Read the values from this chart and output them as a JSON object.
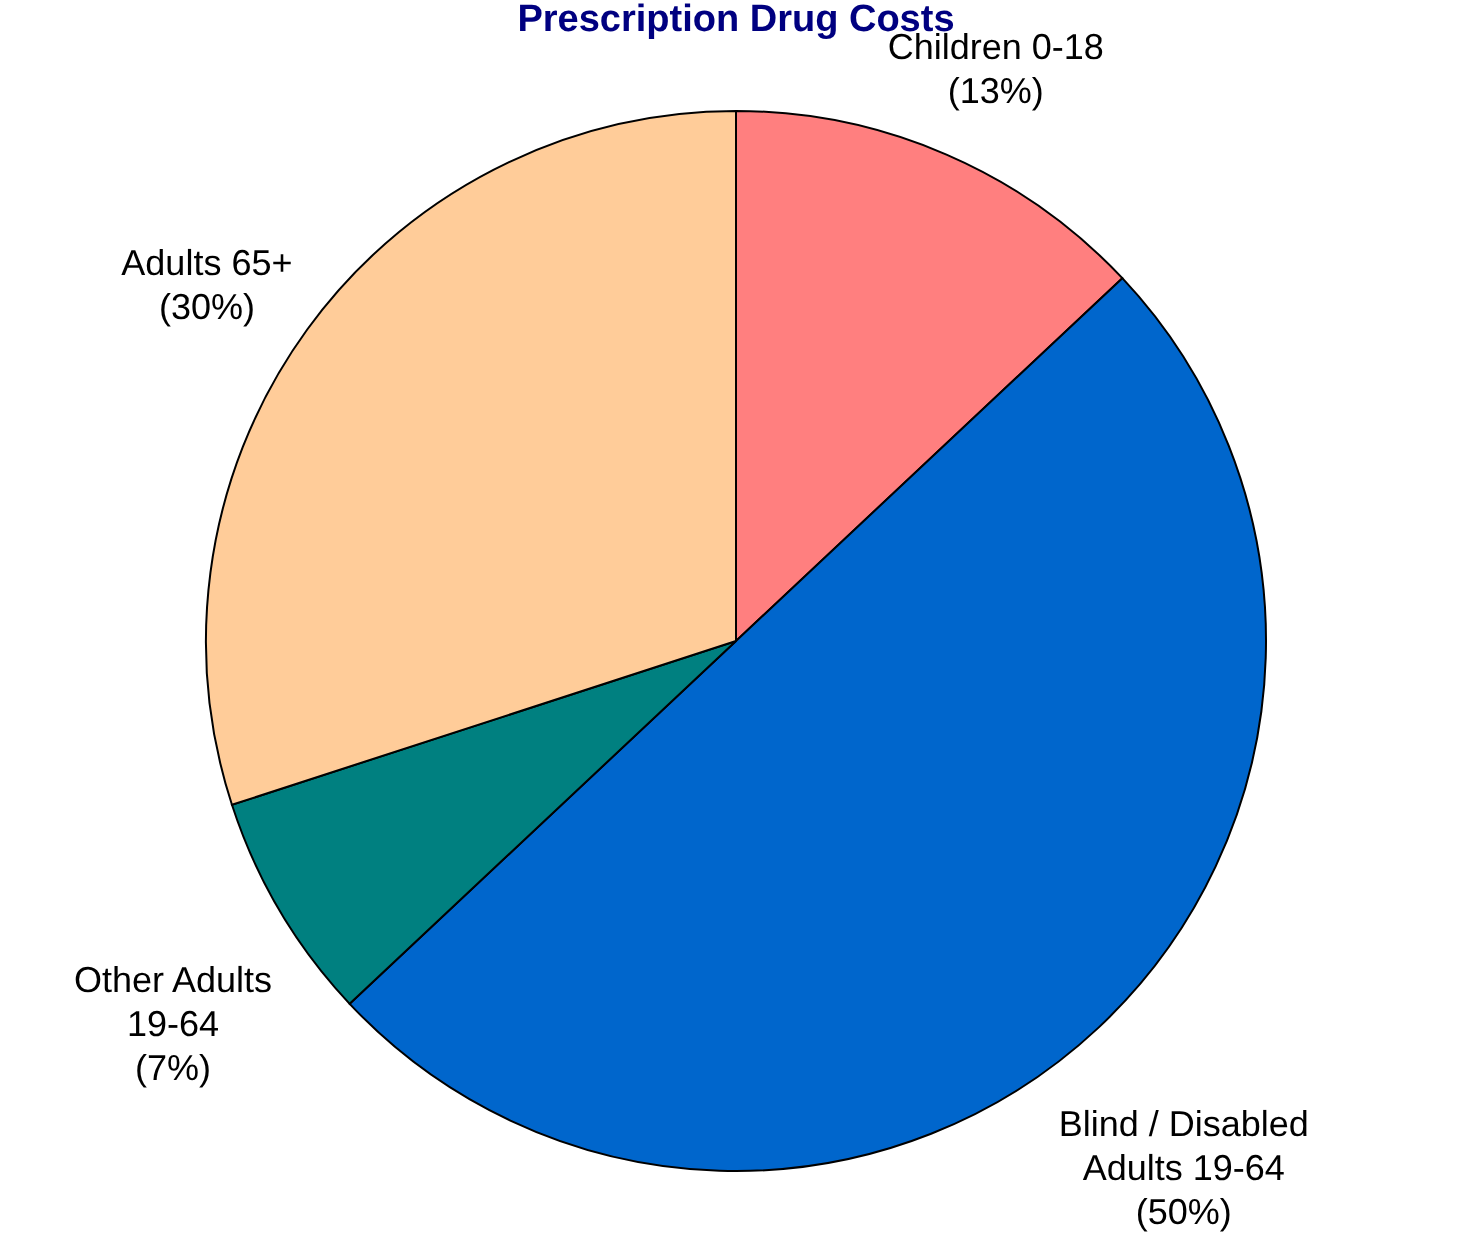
{
  "chart_data": {
    "type": "pie",
    "title": "Prescription Drug Costs",
    "categories": [
      "Children 0-18",
      "Blind / Disabled\nAdults 19-64",
      "Other Adults\n19-64",
      "Adults 65+"
    ],
    "values": [
      13,
      50,
      7,
      30
    ],
    "colors": [
      "#ff7f7f",
      "#0066cc",
      "#008080",
      "#ffcc99"
    ],
    "value_labels": [
      "(13%)",
      "(50%)",
      "(7%)",
      "(30%)"
    ],
    "legend": false
  }
}
